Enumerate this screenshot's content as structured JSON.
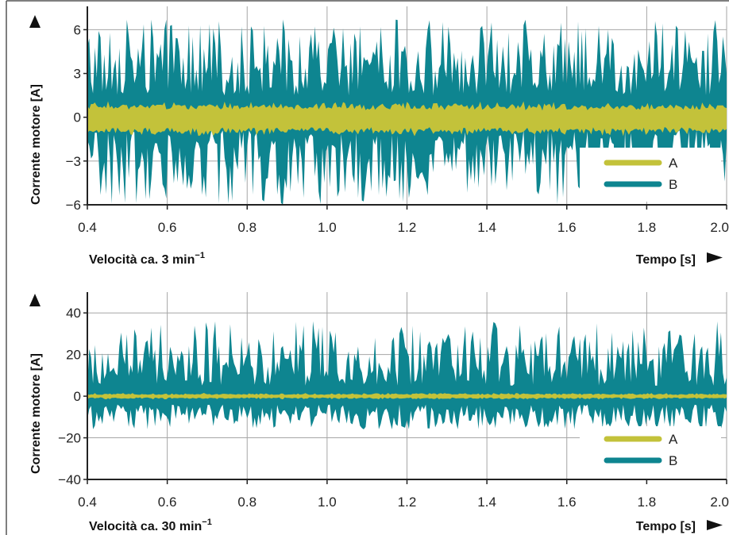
{
  "colors": {
    "A": "#c3c23a",
    "B": "#0e8590",
    "grid": "#a6a6a6",
    "axis": "#222222",
    "frame": "#555555"
  },
  "chart_data": [
    {
      "type": "area",
      "ylabel": "Corrente motore [A]",
      "speed_label": "Velocità ca. 3 min",
      "speed_unit_exp": "−1",
      "xlabel": "Tempo [s]",
      "xlim": [
        0.4,
        2.0
      ],
      "ylim": [
        -6,
        7.6
      ],
      "xticks": [
        0.4,
        0.6,
        0.8,
        1.0,
        1.2,
        1.4,
        1.6,
        1.8,
        2.0
      ],
      "xtick_labels": [
        "0.4",
        "0.6",
        "0.8",
        "1.0",
        "1.2",
        "1.4",
        "1.6",
        "1.8",
        "2.0"
      ],
      "yticks": [
        -6,
        -3,
        0,
        3,
        6
      ],
      "ytick_labels": [
        "−6",
        "−3",
        "0",
        "3",
        "6"
      ],
      "grid": true,
      "legend": {
        "position": "bottom-right",
        "items": [
          "A",
          "B"
        ]
      },
      "series": [
        {
          "name": "A",
          "mean": -0.1,
          "amplitude_min": 0.65,
          "amplitude_max": 1.05
        },
        {
          "name": "B",
          "mean": 0.0,
          "upper_range": [
            1.5,
            6.7
          ],
          "lower_range": [
            -6.0,
            -0.9
          ]
        }
      ]
    },
    {
      "type": "area",
      "ylabel": "Corrente motore [A]",
      "speed_label": "Velocità ca. 30 min",
      "speed_unit_exp": "−1",
      "xlabel": "Tempo [s]",
      "xlim": [
        0.4,
        2.0
      ],
      "ylim": [
        -40,
        50
      ],
      "xticks": [
        0.4,
        0.6,
        0.8,
        1.0,
        1.2,
        1.4,
        1.6,
        1.8,
        2.0
      ],
      "xtick_labels": [
        "0.4",
        "0.6",
        "0.8",
        "1.0",
        "1.2",
        "1.4",
        "1.6",
        "1.8",
        "2.0"
      ],
      "yticks": [
        -40,
        -20,
        0,
        20,
        40
      ],
      "ytick_labels": [
        "−40",
        "−20",
        "0",
        "20",
        "40"
      ],
      "grid": true,
      "legend": {
        "position": "bottom-right",
        "items": [
          "A",
          "B"
        ]
      },
      "series": [
        {
          "name": "A",
          "mean": 0.0,
          "amplitude_min": 0.6,
          "amplitude_max": 1.4
        },
        {
          "name": "B",
          "mean": 0.0,
          "upper_range": [
            5,
            36
          ],
          "lower_range": [
            -16,
            -4
          ]
        }
      ]
    }
  ]
}
